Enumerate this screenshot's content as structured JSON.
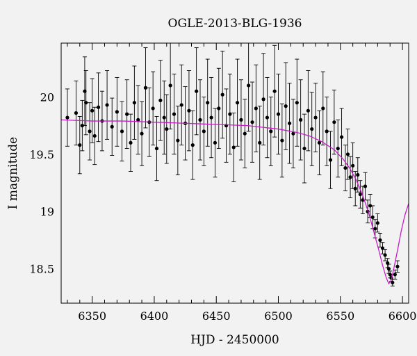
{
  "chart_data": {
    "type": "scatter",
    "title": "OGLE-2013-BLG-1936",
    "xlabel": "HJD - 2450000",
    "ylabel": "I magnitude",
    "xlim": [
      6325,
      6605
    ],
    "ylim": [
      20.47,
      18.2
    ],
    "y_inverted": true,
    "grid": false,
    "x_ticks": [
      "6350",
      "6400",
      "6450",
      "6500",
      "6550",
      "6600"
    ],
    "y_ticks": [
      "18.5",
      "19",
      "19.5",
      "20"
    ],
    "x_tick_values": [
      6350,
      6400,
      6450,
      6500,
      6550,
      6600
    ],
    "y_tick_values": [
      18.5,
      19.0,
      19.5,
      20.0
    ],
    "series": [
      {
        "kind": "points_with_errorbars",
        "color": "#000000",
        "x": [
          6330,
          6337,
          6340,
          6342,
          6344,
          6345,
          6348,
          6350,
          6352,
          6355,
          6358,
          6362,
          6366,
          6370,
          6374,
          6378,
          6381,
          6384,
          6387,
          6390,
          6393,
          6396,
          6399,
          6402,
          6405,
          6408,
          6410,
          6413,
          6416,
          6419,
          6422,
          6425,
          6428,
          6431,
          6434,
          6437,
          6440,
          6443,
          6446,
          6449,
          6452,
          6455,
          6458,
          6461,
          6464,
          6467,
          6470,
          6473,
          6476,
          6479,
          6482,
          6485,
          6488,
          6491,
          6494,
          6497,
          6500,
          6503,
          6506,
          6509,
          6512,
          6515,
          6518,
          6521,
          6524,
          6527,
          6530,
          6533,
          6536,
          6539,
          6542,
          6545,
          6548,
          6551,
          6554,
          6556,
          6558,
          6560,
          6562,
          6564,
          6566,
          6568,
          6570,
          6572,
          6574,
          6576,
          6578,
          6580,
          6582,
          6584,
          6586,
          6588,
          6589,
          6590,
          6591,
          6592,
          6594,
          6596
        ],
        "y": [
          19.82,
          19.86,
          19.58,
          19.75,
          20.05,
          19.95,
          19.7,
          19.88,
          19.66,
          19.91,
          19.79,
          19.93,
          19.74,
          19.87,
          19.7,
          19.85,
          19.6,
          19.95,
          19.8,
          19.68,
          20.08,
          19.78,
          19.9,
          19.55,
          19.97,
          19.82,
          19.72,
          20.1,
          19.85,
          19.62,
          19.93,
          19.77,
          19.88,
          19.58,
          20.05,
          19.8,
          19.7,
          19.95,
          19.82,
          19.6,
          19.9,
          20.02,
          19.75,
          19.85,
          19.56,
          19.95,
          19.8,
          19.68,
          20.1,
          19.78,
          19.9,
          19.6,
          19.98,
          19.82,
          19.7,
          20.05,
          19.85,
          19.62,
          19.92,
          19.77,
          19.68,
          19.95,
          19.8,
          19.55,
          19.88,
          19.72,
          19.82,
          19.6,
          19.9,
          19.7,
          19.45,
          19.78,
          19.55,
          19.65,
          19.38,
          19.5,
          19.3,
          19.4,
          19.2,
          19.32,
          19.15,
          19.1,
          19.22,
          19.0,
          19.05,
          18.95,
          18.85,
          18.9,
          18.75,
          18.68,
          18.62,
          18.55,
          18.5,
          18.45,
          18.42,
          18.38,
          18.45,
          18.52
        ],
        "yerr": [
          0.25,
          0.28,
          0.25,
          0.22,
          0.3,
          0.28,
          0.25,
          0.28,
          0.25,
          0.3,
          0.26,
          0.3,
          0.25,
          0.3,
          0.26,
          0.3,
          0.25,
          0.32,
          0.3,
          0.28,
          0.35,
          0.3,
          0.32,
          0.28,
          0.35,
          0.32,
          0.3,
          0.38,
          0.35,
          0.3,
          0.35,
          0.32,
          0.35,
          0.3,
          0.38,
          0.35,
          0.3,
          0.38,
          0.35,
          0.3,
          0.35,
          0.38,
          0.32,
          0.35,
          0.3,
          0.38,
          0.35,
          0.3,
          0.4,
          0.35,
          0.38,
          0.32,
          0.4,
          0.35,
          0.3,
          0.4,
          0.35,
          0.32,
          0.38,
          0.35,
          0.3,
          0.38,
          0.35,
          0.3,
          0.35,
          0.32,
          0.3,
          0.28,
          0.32,
          0.3,
          0.25,
          0.28,
          0.25,
          0.25,
          0.2,
          0.22,
          0.18,
          0.2,
          0.15,
          0.15,
          0.12,
          0.12,
          0.12,
          0.1,
          0.1,
          0.1,
          0.08,
          0.08,
          0.06,
          0.05,
          0.05,
          0.04,
          0.04,
          0.03,
          0.03,
          0.03,
          0.04,
          0.05
        ]
      },
      {
        "kind": "model_line",
        "color": "#c81bc8",
        "x": [
          6325,
          6350,
          6375,
          6400,
          6425,
          6450,
          6475,
          6500,
          6515,
          6525,
          6535,
          6545,
          6552,
          6558,
          6563,
          6568,
          6573,
          6577,
          6581,
          6584,
          6587,
          6589,
          6591,
          6593,
          6596,
          6599,
          6602,
          6605
        ],
        "y": [
          19.8,
          19.79,
          19.79,
          19.78,
          19.77,
          19.76,
          19.75,
          19.72,
          19.69,
          19.66,
          19.61,
          19.54,
          19.46,
          19.37,
          19.27,
          19.14,
          18.98,
          18.82,
          18.66,
          18.53,
          18.42,
          18.37,
          18.4,
          18.5,
          18.66,
          18.83,
          18.97,
          19.07
        ]
      }
    ]
  }
}
